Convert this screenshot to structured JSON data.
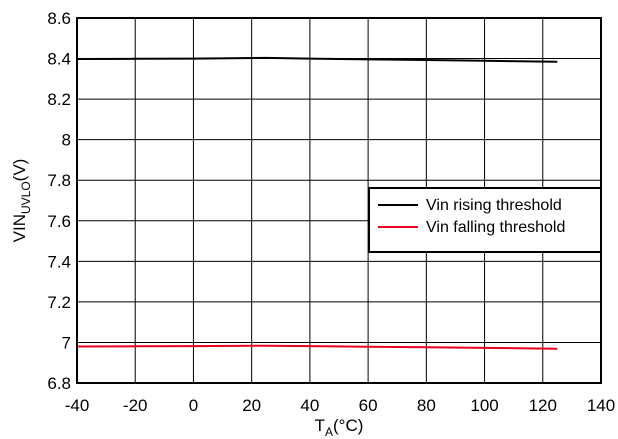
{
  "chart_data": {
    "type": "line",
    "xlabel": {
      "main": "T",
      "sub": "A",
      "rest": "(°C)"
    },
    "ylabel": {
      "main": "VIN",
      "sub": "UVLO",
      "rest": "(V)"
    },
    "xlim": [
      -40,
      140
    ],
    "ylim": [
      6.8,
      8.6
    ],
    "xticks": [
      -40,
      -20,
      0,
      20,
      40,
      60,
      80,
      100,
      120,
      140
    ],
    "yticks": [
      6.8,
      7,
      7.2,
      7.4,
      7.6,
      7.8,
      8,
      8.2,
      8.4,
      8.6
    ],
    "xtick_labels": [
      "-40",
      "-20",
      "0",
      "20",
      "40",
      "60",
      "80",
      "100",
      "120",
      "140"
    ],
    "ytick_labels": [
      "6.8",
      "7",
      "7.2",
      "7.4",
      "7.6",
      "7.8",
      "8",
      "8.2",
      "8.4",
      "8.6"
    ],
    "grid": true,
    "legend_position": "right",
    "series": [
      {
        "name": "Vin rising threshold",
        "color": "#000000",
        "x": [
          -40,
          -20,
          0,
          25,
          40,
          60,
          80,
          100,
          125
        ],
        "y": [
          8.398,
          8.399,
          8.4,
          8.403,
          8.4,
          8.396,
          8.393,
          8.389,
          8.384
        ]
      },
      {
        "name": "Vin falling threshold",
        "color": "#e8001c",
        "x": [
          -40,
          -20,
          0,
          25,
          40,
          60,
          80,
          100,
          125
        ],
        "y": [
          6.98,
          6.981,
          6.982,
          6.984,
          6.982,
          6.979,
          6.976,
          6.973,
          6.969
        ]
      }
    ]
  }
}
